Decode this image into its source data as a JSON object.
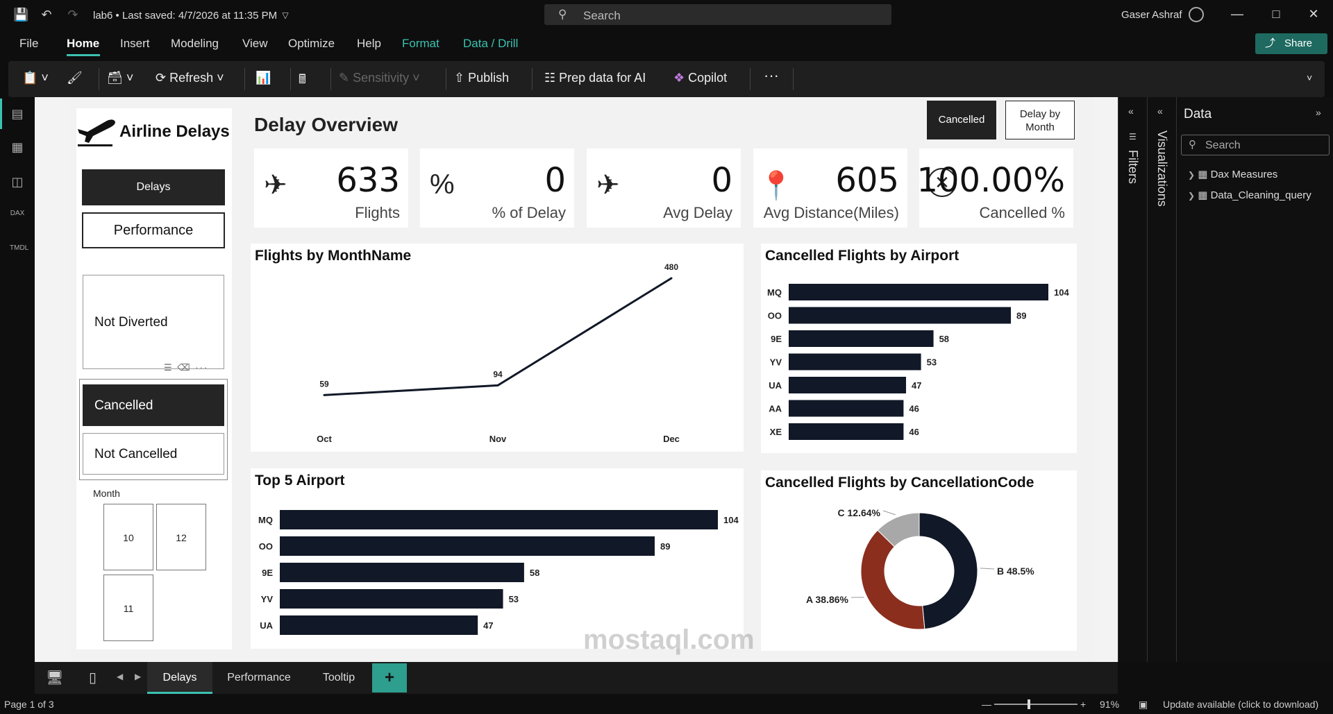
{
  "titlebar": {
    "doc_title": "lab6 • Last saved: 4/7/2026 at 11:35 PM",
    "search_placeholder": "Search",
    "user_name": "Gaser Ashraf"
  },
  "menu": {
    "file": "File",
    "home": "Home",
    "insert": "Insert",
    "modeling": "Modeling",
    "view": "View",
    "optimize": "Optimize",
    "help": "Help",
    "format": "Format",
    "data_drill": "Data / Drill",
    "share": "Share"
  },
  "ribbon": {
    "refresh": "Refresh",
    "sensitivity": "Sensitivity",
    "publish": "Publish",
    "prep_data": "Prep data for AI",
    "copilot": "Copilot",
    "more": "···"
  },
  "rail": {
    "dax": "DAX",
    "tmdl": "TMDL"
  },
  "report": {
    "logo_text": "Airline Delays",
    "nav_delays": "Delays",
    "nav_performance": "Performance",
    "slicer_not_diverted": "Not Diverted",
    "slicer_cancelled": "Cancelled",
    "slicer_not_cancelled": "Not Cancelled",
    "month_label": "Month",
    "months": [
      "10",
      "12",
      "11"
    ],
    "page_title": "Delay Overview",
    "btn_cancelled": "Cancelled",
    "btn_delay_by_month_1": "Delay by",
    "btn_delay_by_month_2": "Month"
  },
  "kpis": [
    {
      "value": "633",
      "label": "Flights"
    },
    {
      "value": "0",
      "label": "% of Delay"
    },
    {
      "value": "0",
      "label": "Avg Delay"
    },
    {
      "value": "605",
      "label": "Avg Distance(Miles)"
    },
    {
      "value": "100.00%",
      "label": "Cancelled %"
    }
  ],
  "chart_data": [
    {
      "type": "line",
      "title": "Flights by MonthName",
      "categories": [
        "Oct",
        "Nov",
        "Dec"
      ],
      "values": [
        59,
        94,
        480
      ],
      "data_labels": [
        "59",
        "94",
        "480"
      ]
    },
    {
      "type": "bar",
      "title": "Cancelled Flights by Airport",
      "orientation": "horizontal",
      "categories": [
        "MQ",
        "OO",
        "9E",
        "YV",
        "UA",
        "AA",
        "XE"
      ],
      "values": [
        104,
        89,
        58,
        53,
        47,
        46,
        46
      ]
    },
    {
      "type": "bar",
      "title": "Top 5 Airport",
      "orientation": "horizontal",
      "categories": [
        "MQ",
        "OO",
        "9E",
        "YV",
        "UA"
      ],
      "values": [
        104,
        89,
        58,
        53,
        47
      ]
    },
    {
      "type": "pie",
      "title": "Cancelled Flights by CancellationCode",
      "labels": [
        "B",
        "A",
        "C"
      ],
      "values": [
        48.5,
        38.86,
        12.64
      ],
      "slice_labels": [
        "B 48.5%",
        "A 38.86%",
        "C 12.64%"
      ],
      "colors": [
        "#111827",
        "#8b2e1e",
        "#a8a8a8"
      ]
    }
  ],
  "panes": {
    "filters": "Filters",
    "visualizations": "Visualizations",
    "data": "Data",
    "data_search": "Search",
    "tree": [
      "Dax Measures",
      "Data_Cleaning_query"
    ]
  },
  "tabs": [
    "Delays",
    "Performance",
    "Tooltip"
  ],
  "tab_add": "+",
  "status": {
    "page": "Page 1 of 3",
    "zoom": "91%",
    "update": "Update available (click to download)"
  },
  "watermark": "mostaql.com",
  "colors": {
    "accent": "#3cc2b0",
    "bar": "#111827"
  }
}
